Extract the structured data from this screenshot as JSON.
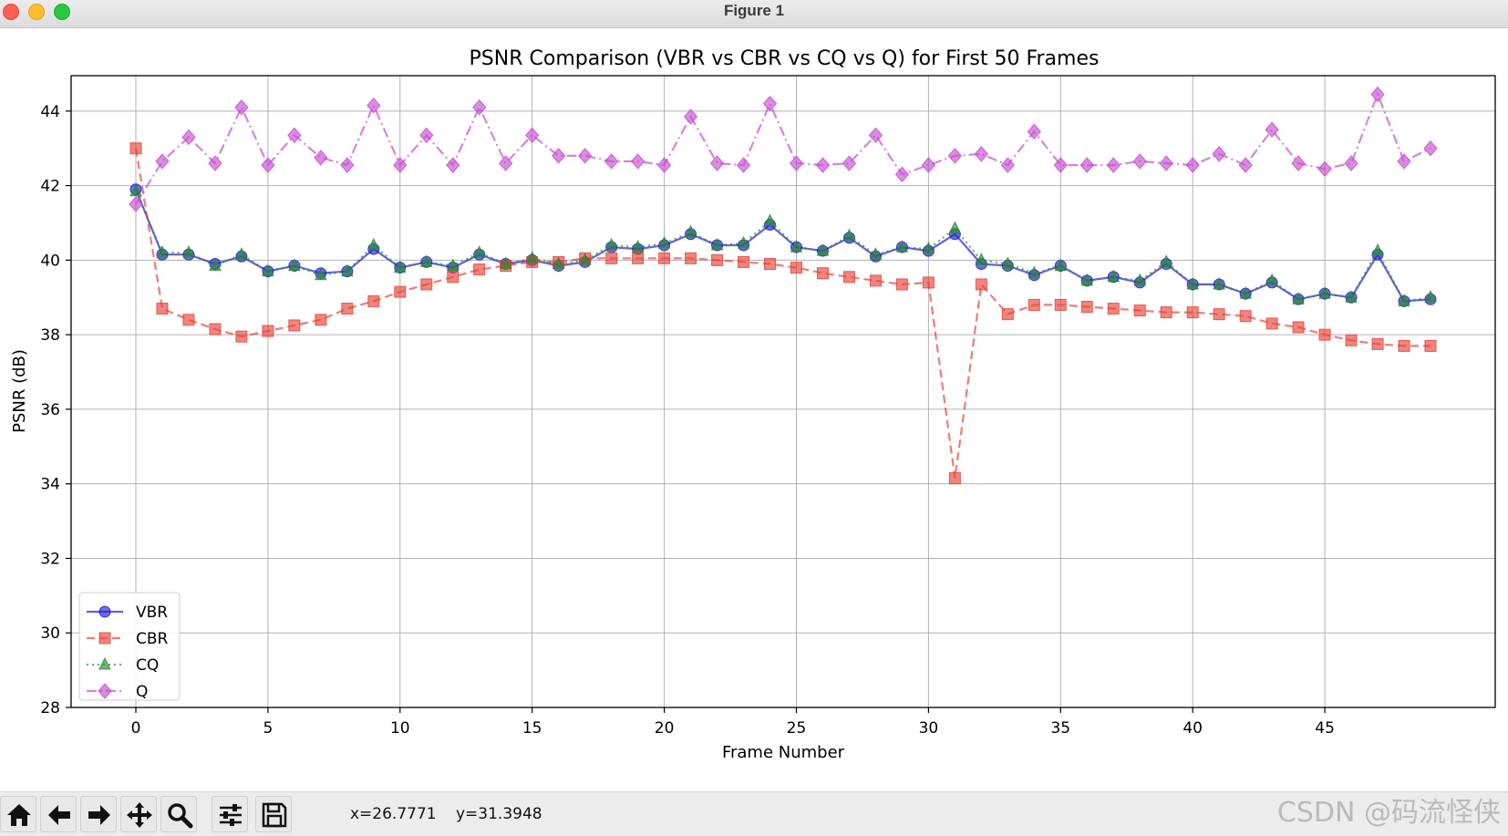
{
  "window": {
    "title": "Figure 1"
  },
  "toolbar": {
    "buttons": [
      {
        "name": "home-icon"
      },
      {
        "name": "back-arrow-icon"
      },
      {
        "name": "forward-arrow-icon"
      },
      {
        "name": "pan-icon"
      },
      {
        "name": "zoom-icon"
      },
      {
        "name": "configure-subplots-icon"
      },
      {
        "name": "save-icon"
      }
    ],
    "x_readout": "x=26.7771",
    "y_readout": "y=31.3948"
  },
  "watermark": "CSDN @码流怪侠",
  "chart_data": {
    "type": "line",
    "title": "PSNR Comparison (VBR vs CBR vs CQ vs Q) for First 50 Frames",
    "xlabel": "Frame Number",
    "ylabel": "PSNR (dB)",
    "xlim": [
      -2.45,
      51.45
    ],
    "ylim": [
      28,
      44.95
    ],
    "xticks": [
      0,
      5,
      10,
      15,
      20,
      25,
      30,
      35,
      40,
      45
    ],
    "yticks": [
      28,
      30,
      32,
      34,
      36,
      38,
      40,
      42,
      44
    ],
    "grid": true,
    "legend_position": "lower-left",
    "x": [
      0,
      1,
      2,
      3,
      4,
      5,
      6,
      7,
      8,
      9,
      10,
      11,
      12,
      13,
      14,
      15,
      16,
      17,
      18,
      19,
      20,
      21,
      22,
      23,
      24,
      25,
      26,
      27,
      28,
      29,
      30,
      31,
      32,
      33,
      34,
      35,
      36,
      37,
      38,
      39,
      40,
      41,
      42,
      43,
      44,
      45,
      46,
      47,
      48,
      49
    ],
    "series": [
      {
        "name": "VBR",
        "color": "#1f1fd8",
        "marker": "circle",
        "linestyle": "solid",
        "values": [
          41.9,
          40.15,
          40.15,
          39.9,
          40.1,
          39.7,
          39.85,
          39.65,
          39.7,
          40.3,
          39.8,
          39.95,
          39.8,
          40.15,
          39.9,
          40.0,
          39.85,
          39.95,
          40.35,
          40.3,
          40.4,
          40.7,
          40.4,
          40.4,
          40.95,
          40.35,
          40.25,
          40.6,
          40.1,
          40.35,
          40.25,
          40.7,
          39.9,
          39.85,
          39.6,
          39.85,
          39.45,
          39.55,
          39.4,
          39.9,
          39.35,
          39.35,
          39.1,
          39.4,
          38.95,
          39.1,
          39.0,
          40.15,
          38.9,
          38.95
        ]
      },
      {
        "name": "CBR",
        "color": "#e8433a",
        "marker": "square",
        "linestyle": "dashed",
        "values": [
          43.0,
          38.7,
          38.4,
          38.15,
          37.95,
          38.1,
          38.25,
          38.4,
          38.7,
          38.9,
          39.15,
          39.35,
          39.55,
          39.75,
          39.85,
          39.95,
          39.95,
          40.05,
          40.05,
          40.05,
          40.05,
          40.05,
          40.0,
          39.95,
          39.9,
          39.8,
          39.65,
          39.55,
          39.45,
          39.35,
          39.4,
          34.15,
          39.35,
          38.55,
          38.8,
          38.8,
          38.75,
          38.7,
          38.65,
          38.6,
          38.6,
          38.55,
          38.5,
          38.3,
          38.2,
          38.0,
          37.85,
          37.75,
          37.7,
          37.7
        ]
      },
      {
        "name": "CQ",
        "color": "#2e8b2e",
        "marker": "triangle",
        "linestyle": "dotted",
        "values": [
          41.85,
          40.2,
          40.2,
          39.85,
          40.15,
          39.7,
          39.85,
          39.6,
          39.7,
          40.4,
          39.8,
          39.95,
          39.85,
          40.2,
          39.9,
          40.05,
          39.9,
          40.0,
          40.4,
          40.35,
          40.45,
          40.75,
          40.4,
          40.45,
          41.05,
          40.35,
          40.25,
          40.65,
          40.15,
          40.35,
          40.3,
          40.85,
          40.0,
          39.9,
          39.65,
          39.85,
          39.45,
          39.55,
          39.45,
          39.95,
          39.35,
          39.35,
          39.1,
          39.45,
          38.95,
          39.1,
          39.0,
          40.25,
          38.9,
          39.0
        ]
      },
      {
        "name": "Q",
        "color": "#c44fd0",
        "marker": "diamond",
        "linestyle": "dashdot",
        "values": [
          41.5,
          42.65,
          43.3,
          42.6,
          44.1,
          42.55,
          43.35,
          42.75,
          42.55,
          44.15,
          42.55,
          43.35,
          42.55,
          44.1,
          42.6,
          43.35,
          42.8,
          42.8,
          42.65,
          42.65,
          42.55,
          43.85,
          42.6,
          42.55,
          44.2,
          42.6,
          42.55,
          42.6,
          43.35,
          42.3,
          42.55,
          42.8,
          42.85,
          42.55,
          43.45,
          42.55,
          42.55,
          42.55,
          42.65,
          42.6,
          42.55,
          42.85,
          42.55,
          43.5,
          42.6,
          42.45,
          42.6,
          44.45,
          42.65,
          43.0
        ]
      }
    ]
  }
}
